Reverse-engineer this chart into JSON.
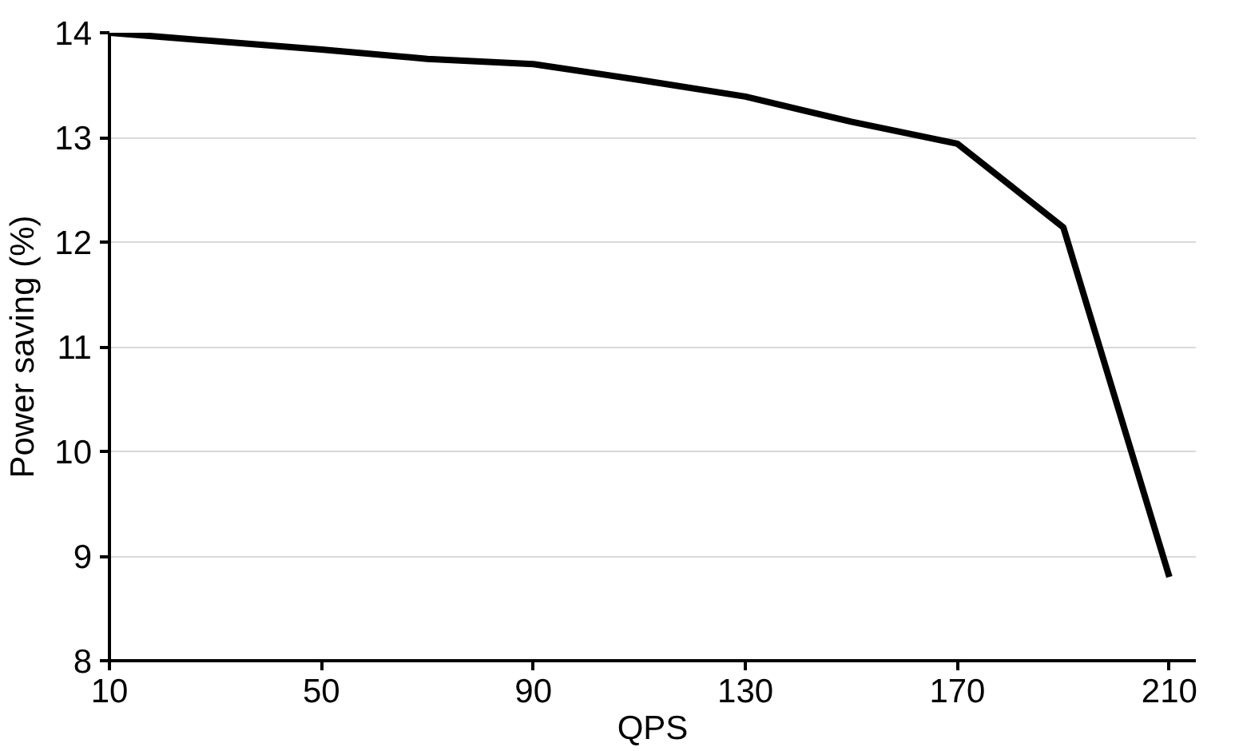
{
  "chart_data": {
    "type": "line",
    "xlabel": "QPS",
    "ylabel": "Power saving (%)",
    "x": [
      10,
      30,
      50,
      70,
      90,
      110,
      130,
      150,
      170,
      190,
      210
    ],
    "series": [
      {
        "color": "#000000",
        "values": [
          14.0,
          13.92,
          13.84,
          13.75,
          13.7,
          13.55,
          13.39,
          13.15,
          12.94,
          12.14,
          8.8
        ]
      }
    ],
    "xlim": [
      10,
      215
    ],
    "xticks": [
      10,
      50,
      90,
      130,
      170,
      210
    ],
    "ylim": [
      8,
      14
    ],
    "yticks": [
      8,
      9,
      10,
      11,
      12,
      13,
      14
    ],
    "grid": "y",
    "marker": "none",
    "line_style": "solid"
  }
}
